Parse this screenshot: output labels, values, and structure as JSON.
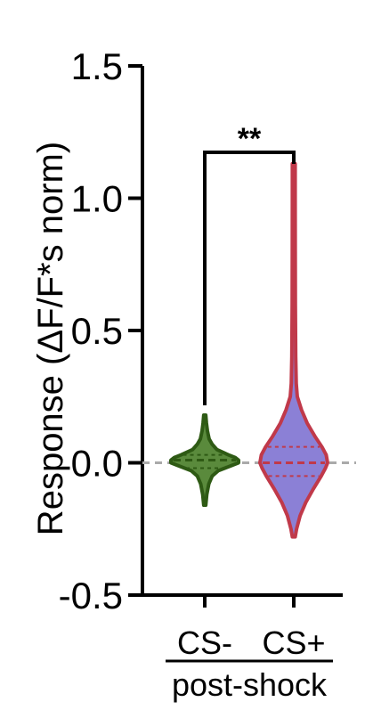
{
  "chart_data": {
    "type": "violin",
    "ylabel": "Response (ΔF/F*s norm)",
    "ylim": [
      -0.5,
      1.5
    ],
    "yticks": [
      -0.5,
      0.0,
      0.5,
      1.0,
      1.5
    ],
    "ytick_labels": [
      "-0.5",
      "0.0",
      "0.5",
      "1.0",
      "1.5"
    ],
    "reference_line": 0.0,
    "categories": [
      "CS-",
      "CS+"
    ],
    "group_label": "post-shock",
    "significance": "**",
    "grid": false,
    "series": [
      {
        "category": "CS-",
        "fill": "#5a8a3c",
        "stroke": "#2e5a14",
        "min": -0.16,
        "max": 0.18,
        "median": 0.01,
        "q1": -0.02,
        "q3": 0.03,
        "profile": [
          [
            -0.16,
            0.3
          ],
          [
            -0.12,
            0.6
          ],
          [
            -0.08,
            1.2
          ],
          [
            -0.05,
            2.2
          ],
          [
            -0.03,
            4
          ],
          [
            -0.01,
            8
          ],
          [
            0.0,
            10
          ],
          [
            0.01,
            10
          ],
          [
            0.02,
            9
          ],
          [
            0.03,
            7
          ],
          [
            0.05,
            3.6
          ],
          [
            0.07,
            2.2
          ],
          [
            0.09,
            1.3
          ],
          [
            0.12,
            0.8
          ],
          [
            0.15,
            0.5
          ],
          [
            0.18,
            0.3
          ]
        ]
      },
      {
        "category": "CS+",
        "fill": "#8b80d6",
        "stroke": "#c0394a",
        "min": -0.28,
        "max": 1.13,
        "median": 0.0,
        "q1": -0.05,
        "q3": 0.06,
        "profile": [
          [
            -0.28,
            0.4
          ],
          [
            -0.25,
            0.8
          ],
          [
            -0.2,
            1.8
          ],
          [
            -0.15,
            3.4
          ],
          [
            -0.1,
            5.5
          ],
          [
            -0.05,
            7.8
          ],
          [
            -0.02,
            9
          ],
          [
            0.0,
            9.6
          ],
          [
            0.03,
            9.2
          ],
          [
            0.06,
            8
          ],
          [
            0.1,
            6
          ],
          [
            0.15,
            3.8
          ],
          [
            0.2,
            2.2
          ],
          [
            0.25,
            1.0
          ],
          [
            0.3,
            0.7
          ],
          [
            0.4,
            0.55
          ],
          [
            0.6,
            0.45
          ],
          [
            0.8,
            0.42
          ],
          [
            1.0,
            0.4
          ],
          [
            1.13,
            0.4
          ]
        ]
      }
    ]
  }
}
